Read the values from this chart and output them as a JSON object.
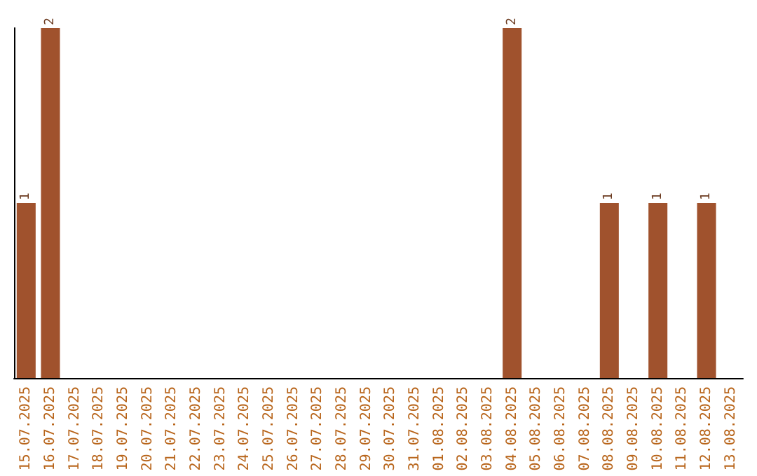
{
  "chart_data": {
    "type": "bar",
    "categories": [
      "15.07.2025",
      "16.07.2025",
      "17.07.2025",
      "18.07.2025",
      "19.07.2025",
      "20.07.2025",
      "21.07.2025",
      "22.07.2025",
      "23.07.2025",
      "24.07.2025",
      "25.07.2025",
      "26.07.2025",
      "27.07.2025",
      "28.07.2025",
      "29.07.2025",
      "30.07.2025",
      "31.07.2025",
      "01.08.2025",
      "02.08.2025",
      "03.08.2025",
      "04.08.2025",
      "05.08.2025",
      "06.08.2025",
      "07.08.2025",
      "08.08.2025",
      "09.08.2025",
      "10.08.2025",
      "11.08.2025",
      "12.08.2025",
      "13.08.2025"
    ],
    "values": [
      1,
      2,
      0,
      0,
      0,
      0,
      0,
      0,
      0,
      0,
      0,
      0,
      0,
      0,
      0,
      0,
      0,
      0,
      0,
      0,
      2,
      0,
      0,
      0,
      1,
      0,
      1,
      0,
      1,
      0
    ],
    "value_labels": [
      "1",
      "2",
      null,
      null,
      null,
      null,
      null,
      null,
      null,
      null,
      null,
      null,
      null,
      null,
      null,
      null,
      null,
      null,
      null,
      null,
      "2",
      null,
      null,
      null,
      "1",
      null,
      "1",
      null,
      "1",
      null
    ],
    "color": "#a0522d"
  }
}
